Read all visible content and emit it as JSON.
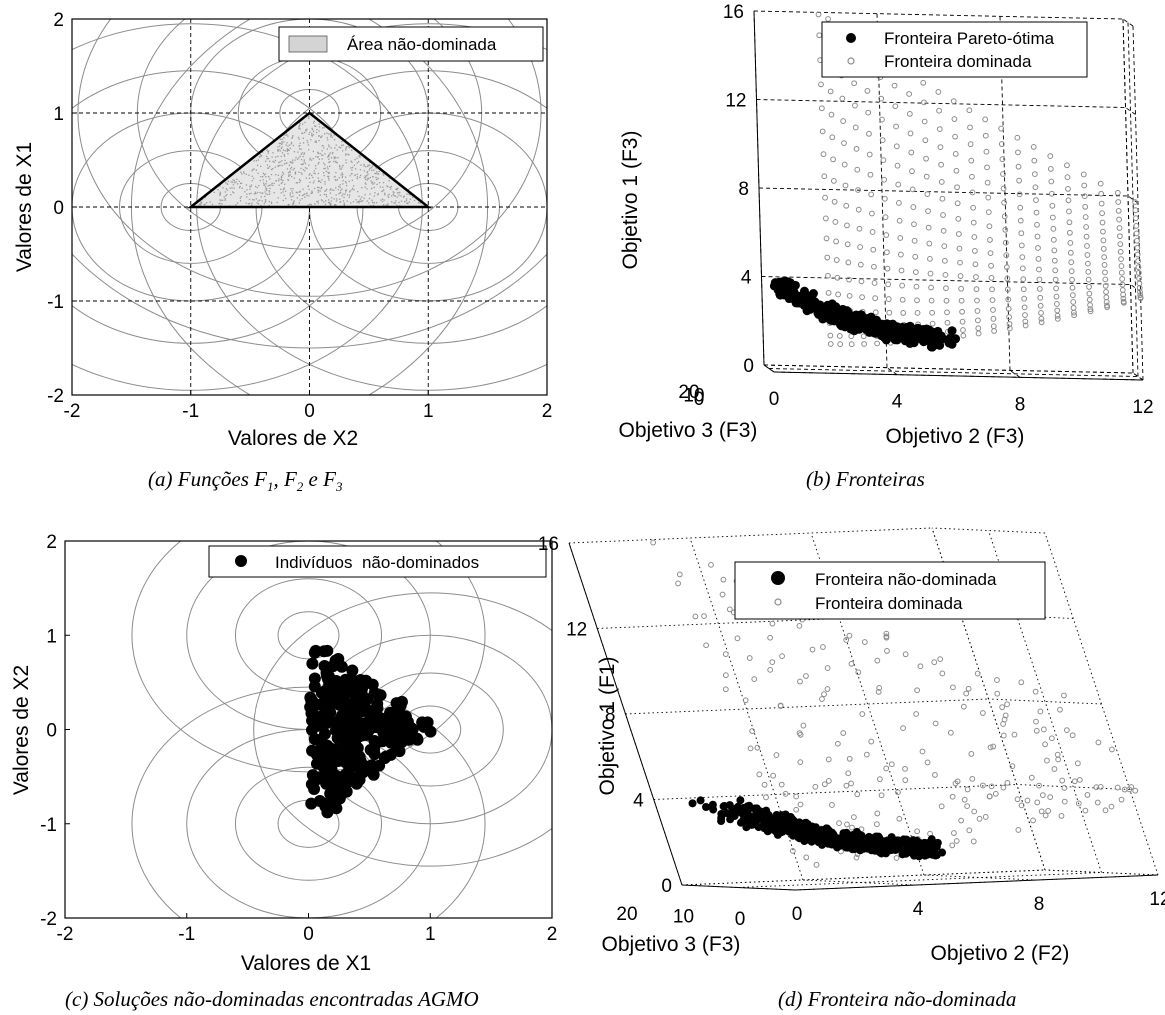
{
  "captions": {
    "a_pre": "(a) Funções F",
    "a_s1": "1",
    "a_mid1": ", F",
    "a_s2": "2",
    "a_mid2": " e F",
    "a_s3": "3",
    "b": "(b) Fronteiras",
    "c": "(c) Soluções não-dominadas encontradas AGMO",
    "d": "(d) Fronteira não-dominada"
  },
  "colors": {
    "line": "#8c8c8c",
    "dominated": "#8c8c8c",
    "pareto": "#000000",
    "area": "#bdbdbd"
  },
  "chart_data": [
    {
      "id": "a",
      "type": "contour",
      "xlabel": "Valores de X2",
      "ylabel": "Valores de X1",
      "xlim": [
        -2,
        2
      ],
      "ylim": [
        -2,
        2
      ],
      "xticks": [
        "-2",
        "-1",
        "0",
        "1",
        "2"
      ],
      "yticks": [
        "-2",
        "-1",
        "0",
        "1",
        "2"
      ],
      "grid": "dashed",
      "legend": {
        "placement": "top-right",
        "entries": [
          "Área não-dominada"
        ]
      },
      "contour_centers": [
        [
          0,
          1
        ],
        [
          0,
          -1
        ],
        [
          1,
          0
        ]
      ],
      "contour_radii": [
        0.25,
        0.6,
        1.0,
        1.45,
        1.95,
        2.5
      ],
      "region_vertices": [
        [
          0,
          1
        ],
        [
          0,
          -1
        ],
        [
          1,
          0
        ]
      ]
    },
    {
      "id": "b",
      "type": "scatter3d",
      "zlabel": "Objetivo 1 (F3)",
      "xlabel": "Objetivo 2 (F3)",
      "ylabel": "Objetivo 3 (F3)",
      "xticks": [
        "0",
        "4",
        "8",
        "12"
      ],
      "yticks": [
        "20",
        "10",
        "0"
      ],
      "zticks": [
        "0",
        "4",
        "8",
        "12",
        "16"
      ],
      "xlim": [
        0,
        12
      ],
      "ylim": [
        0,
        20
      ],
      "zlim": [
        0,
        16
      ],
      "grid": "dashed",
      "legend": {
        "placement": "top-right",
        "entries": [
          "Fronteira Pareto-ótima",
          "Fronteira dominada"
        ]
      },
      "series": [
        {
          "name": "Fronteira Pareto-ótima",
          "marker": "filled-circle"
        },
        {
          "name": "Fronteira dominada",
          "marker": "open-circle"
        }
      ]
    },
    {
      "id": "c",
      "type": "scatter",
      "xlabel": "Valores de X1",
      "ylabel": "Valores de X2",
      "xlim": [
        -2,
        2
      ],
      "ylim": [
        -2,
        2
      ],
      "xticks": [
        "-2",
        "-1",
        "0",
        "1",
        "2"
      ],
      "yticks": [
        "-2",
        "-1",
        "0",
        "1",
        "2"
      ],
      "grid": "off",
      "legend": {
        "placement": "top-right",
        "entries": [
          "Indivíduos  não-dominados"
        ]
      },
      "contour_centers": [
        [
          0,
          1
        ],
        [
          0,
          -1
        ],
        [
          1,
          0
        ]
      ],
      "contour_radii": [
        0.25,
        0.6,
        1.0,
        1.45
      ],
      "region_vertices": [
        [
          0,
          1
        ],
        [
          0,
          -1
        ],
        [
          1,
          0
        ]
      ]
    },
    {
      "id": "d",
      "type": "scatter3d",
      "zlabel": "Objetivo 1 (F1)",
      "xlabel": "Objetivo 2 (F2)",
      "ylabel": "Objetivo 3 (F3)",
      "xticks": [
        "0",
        "4",
        "8",
        "12"
      ],
      "yticks": [
        "20",
        "10",
        "0"
      ],
      "zticks": [
        "0",
        "4",
        "8",
        "12",
        "16"
      ],
      "xlim": [
        0,
        12
      ],
      "ylim": [
        0,
        20
      ],
      "zlim": [
        0,
        16
      ],
      "grid": "dotted",
      "legend": {
        "placement": "top-right",
        "entries": [
          "Fronteira não-dominada",
          "Fronteira dominada"
        ]
      },
      "series": [
        {
          "name": "Fronteira não-dominada",
          "marker": "filled-circle"
        },
        {
          "name": "Fronteira dominada",
          "marker": "open-circle"
        }
      ]
    }
  ]
}
